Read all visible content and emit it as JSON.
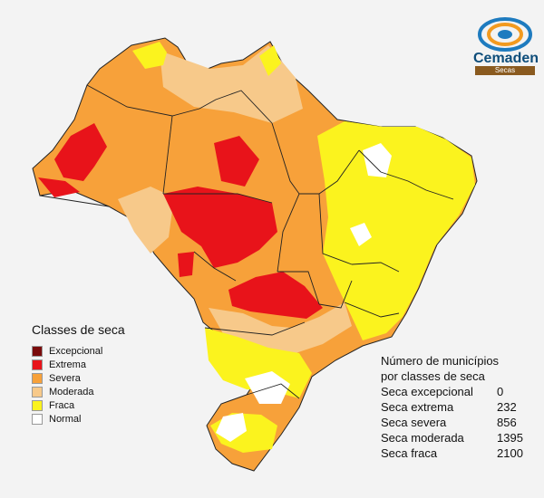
{
  "logo": {
    "name": "Cemaden",
    "subtitle": "Secas"
  },
  "legend": {
    "title": "Classes de seca",
    "items": [
      {
        "label": "Excepcional",
        "color": "#7a0b0b"
      },
      {
        "label": "Extrema",
        "color": "#e8131a"
      },
      {
        "label": "Severa",
        "color": "#f7a13a"
      },
      {
        "label": "Moderada",
        "color": "#f7c98a"
      },
      {
        "label": "Fraca",
        "color": "#fbf31e"
      },
      {
        "label": "Normal",
        "color": "#ffffff"
      }
    ]
  },
  "stats": {
    "title_line1": "Número de municípios",
    "title_line2": "por classes de seca",
    "rows": [
      {
        "label": "Seca excepcional",
        "value": "0"
      },
      {
        "label": "Seca extrema",
        "value": "232"
      },
      {
        "label": "Seca severa",
        "value": "856"
      },
      {
        "label": "Seca moderada",
        "value": "1395"
      },
      {
        "label": "Seca fraca",
        "value": "2100"
      }
    ]
  }
}
